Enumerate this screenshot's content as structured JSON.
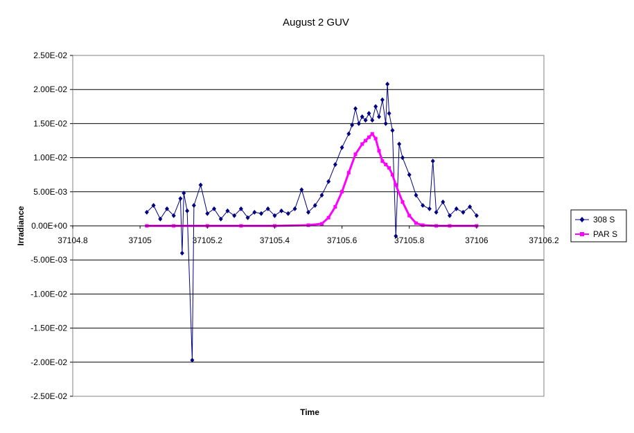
{
  "chart_data": {
    "type": "line",
    "title": "August 2 GUV",
    "xlabel": "Time",
    "ylabel": "Irradiance",
    "xlim": [
      37104.8,
      37106.2
    ],
    "ylim": [
      -0.025,
      0.025
    ],
    "x_ticks": [
      "37104.8",
      "37105",
      "37105.2",
      "37105.4",
      "37105.6",
      "37105.8",
      "37106",
      "37106.2"
    ],
    "y_ticks": [
      "2.50E-02",
      "2.00E-02",
      "1.50E-02",
      "1.00E-02",
      "5.00E-03",
      "0.00E+00",
      "-5.00E-03",
      "-1.00E-02",
      "-1.50E-02",
      "-2.00E-02",
      "-2.50E-02"
    ],
    "grid": "horizontal major gridlines",
    "legend_position": "right",
    "series": [
      {
        "name": "308 S",
        "color": "#000080",
        "marker": "diamond",
        "x": [
          37105.02,
          37105.04,
          37105.06,
          37105.08,
          37105.1,
          37105.12,
          37105.125,
          37105.13,
          37105.14,
          37105.155,
          37105.16,
          37105.18,
          37105.2,
          37105.22,
          37105.24,
          37105.26,
          37105.28,
          37105.3,
          37105.32,
          37105.34,
          37105.36,
          37105.38,
          37105.4,
          37105.42,
          37105.44,
          37105.46,
          37105.48,
          37105.5,
          37105.52,
          37105.54,
          37105.56,
          37105.58,
          37105.6,
          37105.62,
          37105.63,
          37105.64,
          37105.65,
          37105.66,
          37105.67,
          37105.68,
          37105.69,
          37105.7,
          37105.71,
          37105.72,
          37105.73,
          37105.735,
          37105.74,
          37105.75,
          37105.76,
          37105.77,
          37105.78,
          37105.8,
          37105.82,
          37105.84,
          37105.86,
          37105.87,
          37105.88,
          37105.9,
          37105.92,
          37105.94,
          37105.96,
          37105.98,
          37106.0
        ],
        "values": [
          0.002,
          0.003,
          0.001,
          0.0025,
          0.0015,
          0.004,
          -0.004,
          0.0048,
          0.0022,
          -0.0197,
          0.003,
          0.006,
          0.0018,
          0.0025,
          0.001,
          0.0022,
          0.0015,
          0.0025,
          0.0012,
          0.002,
          0.0018,
          0.0025,
          0.0015,
          0.0022,
          0.0018,
          0.0025,
          0.0053,
          0.002,
          0.003,
          0.0045,
          0.0065,
          0.009,
          0.0115,
          0.0135,
          0.0148,
          0.0172,
          0.015,
          0.016,
          0.0155,
          0.0165,
          0.0155,
          0.0175,
          0.016,
          0.0185,
          0.015,
          0.0208,
          0.0165,
          0.014,
          -0.0015,
          0.012,
          0.01,
          0.0075,
          0.0045,
          0.003,
          0.0025,
          0.0095,
          0.002,
          0.0035,
          0.0015,
          0.0025,
          0.002,
          0.0028,
          0.0015
        ]
      },
      {
        "name": "PAR S",
        "color": "#FF00FF",
        "marker": "square",
        "x": [
          37105.02,
          37105.1,
          37105.2,
          37105.3,
          37105.4,
          37105.5,
          37105.54,
          37105.56,
          37105.58,
          37105.6,
          37105.62,
          37105.64,
          37105.66,
          37105.67,
          37105.68,
          37105.69,
          37105.7,
          37105.71,
          37105.72,
          37105.73,
          37105.74,
          37105.75,
          37105.76,
          37105.78,
          37105.8,
          37105.82,
          37105.84,
          37105.88,
          37105.92,
          37106.0
        ],
        "values": [
          0.0,
          0.0,
          0.0,
          0.0,
          0.0,
          0.0001,
          0.0003,
          0.0012,
          0.0028,
          0.005,
          0.0078,
          0.0105,
          0.012,
          0.0125,
          0.013,
          0.0135,
          0.0128,
          0.011,
          0.0095,
          0.009,
          0.0085,
          0.0075,
          0.006,
          0.0035,
          0.0015,
          0.0004,
          0.0001,
          0.0,
          0.0,
          0.0
        ]
      }
    ]
  }
}
